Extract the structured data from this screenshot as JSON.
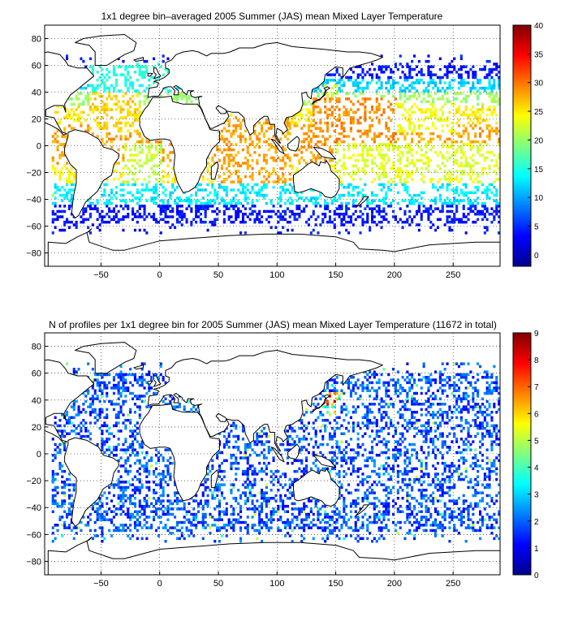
{
  "panels": [
    {
      "title": "1x1 degree bin–averaged 2005 Summer (JAS) mean Mixed Layer Temperature",
      "colorbar": {
        "min": -2,
        "max": 40,
        "ticks": [
          0,
          5,
          10,
          15,
          20,
          25,
          30,
          35,
          40
        ]
      }
    },
    {
      "title": "N of profiles per 1x1 degree bin for 2005 Summer (JAS) mean Mixed Layer Temperature  (11672 in total)",
      "colorbar": {
        "min": 0,
        "max": 9,
        "ticks": [
          0,
          1,
          2,
          3,
          4,
          5,
          6,
          7,
          8,
          9
        ]
      }
    }
  ],
  "map_axes": {
    "x_range": [
      -98,
      290
    ],
    "y_range": [
      -90,
      90
    ],
    "x_ticks": [
      -50,
      0,
      50,
      100,
      150,
      200,
      250
    ],
    "y_ticks": [
      -80,
      -60,
      -40,
      -20,
      0,
      20,
      40,
      60,
      80
    ],
    "grid": "dotted"
  },
  "chart_data": [
    {
      "type": "heatmap",
      "title": "1x1 degree bin–averaged 2005 Summer (JAS) mean Mixed Layer Temperature",
      "xlim": [
        -98,
        290
      ],
      "ylim": [
        -90,
        90
      ],
      "colorbar_range": [
        -2,
        40
      ],
      "colormap": "jet",
      "regions": [
        {
          "lon": [
            -60,
            -20
          ],
          "lat": [
            10,
            40
          ],
          "value": 26
        },
        {
          "lon": [
            -30,
            0
          ],
          "lat": [
            -30,
            0
          ],
          "value": 22
        },
        {
          "lon": [
            -60,
            10
          ],
          "lat": [
            40,
            60
          ],
          "value": 15
        },
        {
          "lon": [
            50,
            110
          ],
          "lat": [
            -30,
            20
          ],
          "value": 28
        },
        {
          "lon": [
            130,
            200
          ],
          "lat": [
            0,
            35
          ],
          "value": 29
        },
        {
          "lon": [
            140,
            150
          ],
          "lat": [
            35,
            45
          ],
          "value": 22
        },
        {
          "lon": [
            200,
            250
          ],
          "lat": [
            10,
            30
          ],
          "value": 24
        },
        {
          "lon": [
            150,
            290
          ],
          "lat": [
            -30,
            0
          ],
          "value": 23
        },
        {
          "lon": [
            -90,
            290
          ],
          "lat": [
            -45,
            -30
          ],
          "value": 13
        },
        {
          "lon": [
            -90,
            290
          ],
          "lat": [
            -60,
            -45
          ],
          "value": 4
        }
      ]
    },
    {
      "type": "heatmap",
      "title": "N of profiles per 1x1 degree bin for 2005 Summer (JAS) mean Mixed Layer Temperature  (11672 in total)",
      "xlim": [
        -98,
        290
      ],
      "ylim": [
        -90,
        90
      ],
      "colorbar_range": [
        0,
        9
      ],
      "colormap": "jet",
      "total_profiles": 11672,
      "regions": [
        {
          "lon": [
            -90,
            290
          ],
          "lat": [
            -60,
            60
          ],
          "value": 1
        },
        {
          "lon": [
            140,
            150
          ],
          "lat": [
            30,
            42
          ],
          "value": 7
        }
      ]
    }
  ]
}
